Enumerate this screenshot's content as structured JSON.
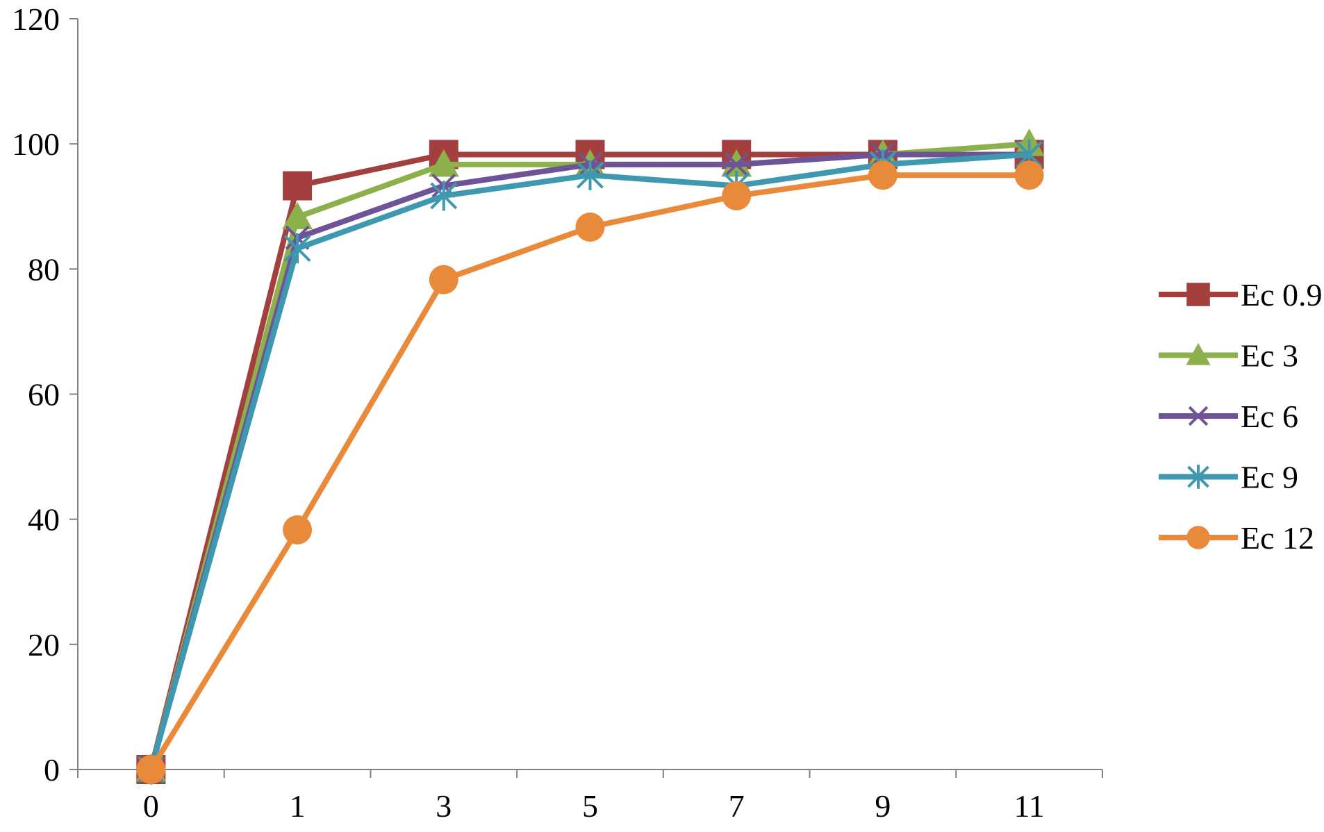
{
  "chart_data": {
    "type": "line",
    "title": "",
    "xlabel": "",
    "ylabel": "",
    "categories": [
      "0",
      "1",
      "3",
      "5",
      "7",
      "9",
      "11"
    ],
    "ylim": [
      0,
      120
    ],
    "yticks": [
      0,
      20,
      40,
      60,
      80,
      100,
      120
    ],
    "grid": false,
    "legend_position": "right",
    "series": [
      {
        "name": "Ec 0.9",
        "color": "#a3403d",
        "marker": "square",
        "values": [
          0,
          93.3,
          98.3,
          98.3,
          98.3,
          98.3,
          98.3
        ]
      },
      {
        "name": "Ec 3",
        "color": "#8cb04b",
        "marker": "triangle",
        "values": [
          0,
          88.3,
          96.7,
          96.7,
          96.7,
          98.3,
          100
        ]
      },
      {
        "name": "Ec 6",
        "color": "#6e5496",
        "marker": "x",
        "values": [
          0,
          85.0,
          93.3,
          96.7,
          96.7,
          98.3,
          98.3
        ]
      },
      {
        "name": "Ec 9",
        "color": "#3d98b0",
        "marker": "star",
        "values": [
          0,
          83.3,
          91.7,
          95.0,
          93.3,
          96.7,
          98.3
        ]
      },
      {
        "name": "Ec 12",
        "color": "#e98a3a",
        "marker": "circle",
        "values": [
          0,
          38.3,
          78.3,
          86.7,
          91.7,
          95.0,
          95.0
        ]
      }
    ]
  }
}
